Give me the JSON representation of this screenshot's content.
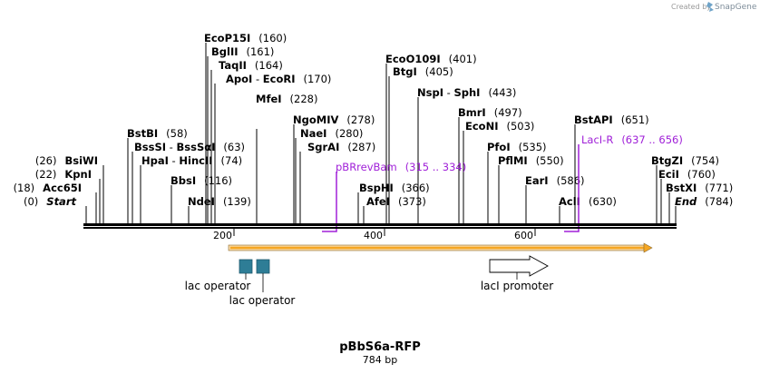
{
  "branding": {
    "created_by": "Created by",
    "brand": "SnapGene"
  },
  "map": {
    "title": "pBbS6a-RFP",
    "length_label": "784 bp",
    "length": 784,
    "ticks": [
      {
        "pos": 200,
        "label": "200"
      },
      {
        "pos": 400,
        "label": "400"
      },
      {
        "pos": 600,
        "label": "600"
      }
    ],
    "sites": [
      {
        "name": "EcoP15I",
        "pos": "(160)"
      },
      {
        "name": "BglII",
        "pos": "(161)"
      },
      {
        "name": "TaqII",
        "pos": "(164)"
      },
      {
        "name": "ApoI",
        "sep": " - ",
        "name2": "EcoRI",
        "pos": "(170)"
      },
      {
        "name": "MfeI",
        "pos": "(228)"
      },
      {
        "name": "NgoMIV",
        "pos": "(278)"
      },
      {
        "name": "NaeI",
        "pos": "(280)"
      },
      {
        "name": "SgrAI",
        "pos": "(287)"
      },
      {
        "name": "EcoO109I",
        "pos": "(401)"
      },
      {
        "name": "BtgI",
        "pos": "(405)"
      },
      {
        "name": "NspI",
        "sep": " - ",
        "name2": "SphI",
        "pos": "(443)"
      },
      {
        "name": "BmrI",
        "pos": "(497)"
      },
      {
        "name": "EcoNI",
        "pos": "(503)"
      },
      {
        "name": "PfoI",
        "pos": "(535)"
      },
      {
        "name": "PflMI",
        "pos": "(550)"
      },
      {
        "name": "EarI",
        "pos": "(586)"
      },
      {
        "name": "AclI",
        "pos": "(630)"
      },
      {
        "name": "BstAPI",
        "pos": "(651)"
      },
      {
        "name": "BstBI",
        "pos": "(58)"
      },
      {
        "name": "BssSI",
        "sep": " - ",
        "name2": "BssSαI",
        "pos": "(63)"
      },
      {
        "name": "HpaI",
        "sep": " - ",
        "name2": "HincII",
        "pos": "(74)"
      },
      {
        "name": "BbsI",
        "pos": "(116)"
      },
      {
        "name": "NdeI",
        "pos": "(139)"
      },
      {
        "name": "BspHI",
        "pos": "(366)"
      },
      {
        "name": "AfeI",
        "pos": "(373)"
      },
      {
        "name": "BsiWI",
        "pos": "(26)"
      },
      {
        "name": "KpnI",
        "pos": "(22)"
      },
      {
        "name": "Acc65I",
        "pos": "(18)"
      },
      {
        "name": "Start",
        "pos": "(0)"
      },
      {
        "name": "BtgZI",
        "pos": "(754)"
      },
      {
        "name": "EciI",
        "pos": "(760)"
      },
      {
        "name": "BstXI",
        "pos": "(771)"
      },
      {
        "name": "End",
        "pos": "(784)"
      }
    ],
    "primers": [
      {
        "name": "pBRrevBam",
        "range": "(315 .. 334)"
      },
      {
        "name": "LacI-R",
        "range": "(637 .. 656)"
      }
    ],
    "features": [
      {
        "name": "lac operator",
        "type": "protein_bind"
      },
      {
        "name": "lac operator",
        "type": "protein_bind"
      },
      {
        "name": "lacI promoter",
        "type": "promoter"
      }
    ],
    "colors": {
      "primer": "#a020d8",
      "operator": "#2e7d96",
      "orf_arrow": "#f5a623",
      "backbone": "#000000"
    }
  }
}
